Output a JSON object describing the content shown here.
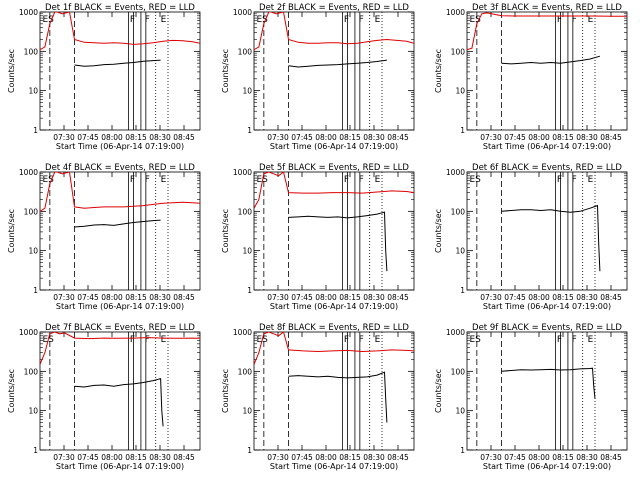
{
  "figure": {
    "ylabel": "Counts/sec",
    "xlabel": "Start Time (06-Apr-14 07:19:00)",
    "xticks": [
      "07:30",
      "07:45",
      "08:00",
      "08:15",
      "08:30",
      "08:45"
    ],
    "yticks": [
      "1",
      "10",
      "100",
      "1000"
    ]
  },
  "colors": {
    "events": "#000000",
    "lld": "#dd0000",
    "axes": "#000000"
  },
  "chart_data": [
    {
      "type": "line",
      "title": "Det 1f BLACK = Events, RED = LLD",
      "xlabel": "Start Time (06-Apr-14 07:19:00)",
      "ylabel": "Counts/sec",
      "ylim": [
        1,
        1000
      ],
      "yscale": "log",
      "xlim": [
        0,
        65
      ],
      "solid_vlines": [
        36,
        38,
        41,
        43
      ],
      "dashed_vlines": [
        4,
        14
      ],
      "dotted_vlines": [
        47,
        52
      ],
      "markers": [
        {
          "text": "ES",
          "x": 1
        },
        {
          "text": "F",
          "x": 36.5
        },
        {
          "text": "F",
          "x": 42.5
        },
        {
          "text": "E",
          "x": 49
        }
      ],
      "series": [
        {
          "name": "BLACK = Events",
          "x": [
            14,
            18,
            22,
            26,
            30,
            34,
            38,
            42,
            46,
            49
          ],
          "values": [
            45,
            42,
            43,
            46,
            47,
            50,
            52,
            56,
            58,
            60
          ]
        },
        {
          "name": "RED = LLD",
          "x": [
            0,
            2,
            4,
            6,
            7,
            9,
            12,
            14,
            18,
            22,
            26,
            30,
            34,
            38,
            42,
            46,
            50,
            54,
            58,
            62,
            65
          ],
          "values": [
            110,
            130,
            500,
            1000,
            1000,
            900,
            1000,
            200,
            170,
            165,
            160,
            165,
            160,
            150,
            155,
            165,
            180,
            190,
            185,
            175,
            160
          ]
        }
      ]
    },
    {
      "type": "line",
      "title": "Det 2f BLACK = Events, RED = LLD",
      "xlabel": "Start Time (06-Apr-14 07:19:00)",
      "ylabel": "Counts/sec",
      "ylim": [
        1,
        1000
      ],
      "yscale": "log",
      "xlim": [
        0,
        65
      ],
      "solid_vlines": [
        36,
        38,
        41,
        43
      ],
      "dashed_vlines": [
        4,
        14
      ],
      "dotted_vlines": [
        47,
        52
      ],
      "markers": [
        {
          "text": "ES",
          "x": 1
        },
        {
          "text": "F",
          "x": 36.5
        },
        {
          "text": "F",
          "x": 42.5
        },
        {
          "text": "E",
          "x": 49
        }
      ],
      "series": [
        {
          "name": "BLACK = Events",
          "x": [
            14,
            18,
            22,
            26,
            30,
            34,
            38,
            42,
            46,
            50,
            54
          ],
          "values": [
            43,
            40,
            42,
            44,
            45,
            46,
            48,
            50,
            52,
            55,
            60
          ]
        },
        {
          "name": "RED = LLD",
          "x": [
            0,
            2,
            4,
            6,
            7,
            9,
            12,
            14,
            18,
            22,
            26,
            30,
            34,
            38,
            42,
            46,
            50,
            54,
            58,
            62,
            65
          ],
          "values": [
            110,
            130,
            500,
            1000,
            1000,
            900,
            1000,
            200,
            170,
            160,
            160,
            165,
            165,
            155,
            160,
            175,
            190,
            200,
            190,
            180,
            160
          ]
        }
      ]
    },
    {
      "type": "line",
      "title": "Det 3f BLACK = Events, RED = LLD",
      "xlabel": "Start Time (06-Apr-14 07:19:00)",
      "ylabel": "Counts/sec",
      "ylim": [
        1,
        1000
      ],
      "yscale": "log",
      "xlim": [
        0,
        65
      ],
      "solid_vlines": [
        36,
        38,
        41,
        43
      ],
      "dashed_vlines": [
        4,
        14
      ],
      "dotted_vlines": [
        47,
        52
      ],
      "markers": [
        {
          "text": "ES",
          "x": 1
        },
        {
          "text": "F",
          "x": 36.5
        },
        {
          "text": "F",
          "x": 42.5
        },
        {
          "text": "E",
          "x": 49
        }
      ],
      "series": [
        {
          "name": "BLACK = Events",
          "x": [
            14,
            18,
            22,
            26,
            30,
            34,
            38,
            42,
            46,
            50,
            54
          ],
          "values": [
            50,
            48,
            50,
            52,
            50,
            52,
            50,
            54,
            58,
            64,
            75
          ]
        },
        {
          "name": "RED = LLD",
          "x": [
            0,
            2,
            4,
            6,
            8,
            10,
            14,
            20,
            30,
            40,
            50,
            60,
            65
          ],
          "values": [
            110,
            120,
            500,
            900,
            950,
            900,
            800,
            790,
            790,
            790,
            790,
            780,
            780
          ]
        }
      ]
    },
    {
      "type": "line",
      "title": "Det 4f BLACK = Events, RED = LLD",
      "xlabel": "Start Time (06-Apr-14 07:19:00)",
      "ylabel": "Counts/sec",
      "ylim": [
        1,
        1000
      ],
      "yscale": "log",
      "xlim": [
        0,
        65
      ],
      "solid_vlines": [
        36,
        38,
        41,
        43
      ],
      "dashed_vlines": [
        4,
        14
      ],
      "dotted_vlines": [
        47,
        52
      ],
      "markers": [
        {
          "text": "ES",
          "x": 1
        },
        {
          "text": "F",
          "x": 36.5
        },
        {
          "text": "F",
          "x": 42.5
        },
        {
          "text": "E",
          "x": 49
        }
      ],
      "series": [
        {
          "name": "BLACK = Events",
          "x": [
            14,
            18,
            22,
            26,
            30,
            34,
            38,
            42,
            46,
            49
          ],
          "values": [
            40,
            42,
            45,
            46,
            44,
            48,
            52,
            55,
            58,
            60
          ]
        },
        {
          "name": "RED = LLD",
          "x": [
            0,
            2,
            4,
            6,
            7,
            9,
            12,
            14,
            18,
            22,
            26,
            30,
            34,
            38,
            42,
            46,
            50,
            54,
            58,
            62,
            65
          ],
          "values": [
            100,
            120,
            500,
            1000,
            1000,
            900,
            1000,
            130,
            120,
            125,
            130,
            130,
            130,
            135,
            140,
            150,
            160,
            165,
            170,
            165,
            160
          ]
        }
      ]
    },
    {
      "type": "line",
      "title": "Det 5f BLACK = Events, RED = LLD",
      "xlabel": "Start Time (06-Apr-14 07:19:00)",
      "ylabel": "Counts/sec",
      "ylim": [
        1,
        1000
      ],
      "yscale": "log",
      "xlim": [
        0,
        65
      ],
      "solid_vlines": [
        36,
        38,
        41,
        43
      ],
      "dashed_vlines": [
        4,
        14
      ],
      "dotted_vlines": [
        47,
        52
      ],
      "markers": [
        {
          "text": "ES",
          "x": 1
        },
        {
          "text": "F",
          "x": 36.5
        },
        {
          "text": "F",
          "x": 42.5
        },
        {
          "text": "E",
          "x": 49
        }
      ],
      "series": [
        {
          "name": "BLACK = Events",
          "x": [
            14,
            18,
            22,
            26,
            30,
            34,
            38,
            42,
            46,
            50,
            53,
            53.5,
            54
          ],
          "values": [
            70,
            72,
            75,
            72,
            70,
            72,
            68,
            72,
            78,
            85,
            95,
            10,
            3
          ]
        },
        {
          "name": "RED = LLD",
          "x": [
            0,
            2,
            4,
            6,
            8,
            10,
            12,
            14,
            20,
            26,
            32,
            38,
            44,
            50,
            56,
            62,
            65
          ],
          "values": [
            120,
            200,
            900,
            1000,
            900,
            800,
            1000,
            300,
            290,
            290,
            300,
            300,
            290,
            310,
            330,
            320,
            300
          ]
        }
      ]
    },
    {
      "type": "line",
      "title": "Det 6f BLACK = Events, RED = LLD",
      "xlabel": "Start Time (06-Apr-14 07:19:00)",
      "ylabel": "Counts/sec",
      "ylim": [
        1,
        1000
      ],
      "yscale": "log",
      "xlim": [
        0,
        65
      ],
      "solid_vlines": [
        36,
        38,
        41,
        43
      ],
      "dashed_vlines": [
        4,
        14
      ],
      "dotted_vlines": [
        47,
        52
      ],
      "markers": [
        {
          "text": "ES",
          "x": 1
        },
        {
          "text": "F",
          "x": 36.5
        },
        {
          "text": "F",
          "x": 42.5
        },
        {
          "text": "E",
          "x": 49
        }
      ],
      "series": [
        {
          "name": "BLACK = Events",
          "x": [
            14,
            18,
            22,
            26,
            30,
            34,
            38,
            42,
            46,
            50,
            53,
            53.5,
            54
          ],
          "values": [
            100,
            105,
            110,
            110,
            105,
            110,
            100,
            95,
            100,
            120,
            140,
            15,
            3
          ]
        }
      ]
    },
    {
      "type": "line",
      "title": "Det 7f BLACK = Events, RED = LLD",
      "xlabel": "Start Time (06-Apr-14 07:19:00)",
      "ylabel": "Counts/sec",
      "ylim": [
        1,
        1000
      ],
      "yscale": "log",
      "xlim": [
        0,
        65
      ],
      "solid_vlines": [
        36,
        38,
        41,
        43
      ],
      "dashed_vlines": [
        4,
        14
      ],
      "dotted_vlines": [
        47,
        52
      ],
      "markers": [
        {
          "text": "ES",
          "x": 1
        },
        {
          "text": "F",
          "x": 36.5
        },
        {
          "text": "F",
          "x": 42.5
        },
        {
          "text": "E",
          "x": 49
        }
      ],
      "series": [
        {
          "name": "BLACK = Events",
          "x": [
            14,
            18,
            22,
            26,
            30,
            34,
            38,
            42,
            46,
            49,
            49.5,
            50
          ],
          "values": [
            42,
            40,
            44,
            45,
            42,
            46,
            48,
            52,
            58,
            65,
            10,
            4
          ]
        },
        {
          "name": "RED = LLD",
          "x": [
            0,
            2,
            4,
            6,
            8,
            10,
            14,
            20,
            26,
            32,
            38,
            44,
            50,
            56,
            62,
            65
          ],
          "values": [
            150,
            300,
            900,
            1000,
            900,
            950,
            700,
            680,
            700,
            690,
            700,
            720,
            700,
            690,
            700,
            690
          ]
        }
      ]
    },
    {
      "type": "line",
      "title": "Det 8f BLACK = Events, RED = LLD",
      "xlabel": "Start Time (06-Apr-14 07:19:00)",
      "ylabel": "Counts/sec",
      "ylim": [
        1,
        1000
      ],
      "yscale": "log",
      "xlim": [
        0,
        65
      ],
      "solid_vlines": [
        36,
        38,
        41,
        43
      ],
      "dashed_vlines": [
        4,
        14
      ],
      "dotted_vlines": [
        47,
        52
      ],
      "markers": [
        {
          "text": "ES",
          "x": 1
        },
        {
          "text": "F",
          "x": 36.5
        },
        {
          "text": "F",
          "x": 42.5
        },
        {
          "text": "E",
          "x": 49
        }
      ],
      "series": [
        {
          "name": "BLACK = Events",
          "x": [
            14,
            18,
            22,
            26,
            30,
            34,
            38,
            42,
            46,
            50,
            53,
            53.5,
            54
          ],
          "values": [
            75,
            78,
            75,
            72,
            75,
            70,
            68,
            70,
            72,
            80,
            95,
            20,
            5
          ]
        },
        {
          "name": "RED = LLD",
          "x": [
            0,
            2,
            4,
            6,
            8,
            10,
            12,
            14,
            20,
            26,
            32,
            38,
            44,
            50,
            56,
            62,
            65
          ],
          "values": [
            150,
            300,
            900,
            1000,
            900,
            800,
            1000,
            350,
            330,
            320,
            330,
            340,
            320,
            330,
            350,
            340,
            330
          ]
        }
      ]
    },
    {
      "type": "line",
      "title": "Det 9f BLACK = Events, RED = LLD",
      "xlabel": "Start Time (06-Apr-14 07:19:00)",
      "ylabel": "Counts/sec",
      "ylim": [
        1,
        1000
      ],
      "yscale": "log",
      "xlim": [
        0,
        65
      ],
      "solid_vlines": [
        36,
        38,
        41,
        43
      ],
      "dashed_vlines": [
        4,
        14
      ],
      "dotted_vlines": [
        47,
        52
      ],
      "markers": [
        {
          "text": "ES",
          "x": 1
        },
        {
          "text": "F",
          "x": 36.5
        },
        {
          "text": "F",
          "x": 42.5
        },
        {
          "text": "E",
          "x": 49
        }
      ],
      "series": [
        {
          "name": "BLACK = Events",
          "x": [
            14,
            18,
            22,
            26,
            30,
            34,
            38,
            42,
            46,
            50,
            51,
            51.5,
            52
          ],
          "values": [
            100,
            105,
            110,
            108,
            110,
            112,
            108,
            110,
            115,
            118,
            120,
            40,
            20
          ]
        }
      ]
    }
  ]
}
